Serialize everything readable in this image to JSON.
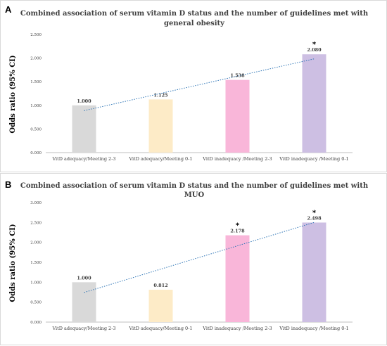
{
  "colors": {
    "bar_colors": [
      "#d9d9d9",
      "#fdebc7",
      "#f9b6d9",
      "#cdbfe3"
    ],
    "trendline": "#2e75b6",
    "axis": "#bfbfbf",
    "text": "#404040"
  },
  "chart_data": [
    {
      "type": "bar",
      "panel_label": "A",
      "title_lines": [
        "Combined association of serum vitamin D status and the number of guidelines met with",
        "general obesity"
      ],
      "ylabel": "Odds ratio (95% CI)",
      "xlabel": "",
      "categories": [
        "VitD adequacy/Meeting 2-3",
        "VitD adequacy/Meeting 0-1",
        "VitD inadequacy /Meeting 2-3",
        "VitD inadequacy /Meeting 0-1"
      ],
      "values": [
        1.0,
        1.125,
        1.538,
        2.08
      ],
      "value_labels": [
        "1.000",
        "1.125",
        "1.538",
        "2.080"
      ],
      "significant": [
        false,
        false,
        false,
        true
      ],
      "star": "*",
      "ylim": [
        0,
        2.5
      ],
      "yticks": [
        "0.000",
        "0.500",
        "1.000",
        "1.500",
        "2.000",
        "2.500"
      ],
      "trendline": "linear, dotted",
      "grid": false
    },
    {
      "type": "bar",
      "panel_label": "B",
      "title_lines": [
        "Combined association of serum vitamin D status and the number of guidelines met with",
        "MUO"
      ],
      "ylabel": "Odds ratio (95% CI)",
      "xlabel": "",
      "categories": [
        "VitD adequacy/Meeting 2-3",
        "VitD adequacy/Meeting 0-1",
        "VitD inadequacy /Meeting 2-3",
        "VitD inadequacy /Meeting 0-1"
      ],
      "values": [
        1.0,
        0.812,
        2.178,
        2.498
      ],
      "value_labels": [
        "1.000",
        "0.812",
        "2.178",
        "2.498"
      ],
      "significant": [
        false,
        false,
        true,
        true
      ],
      "star": "*",
      "ylim": [
        0,
        3.0
      ],
      "yticks": [
        "0.000",
        "0.500",
        "1.000",
        "1.500",
        "2.000",
        "2.500",
        "3.000"
      ],
      "trendline": "linear, dotted",
      "grid": false
    }
  ]
}
